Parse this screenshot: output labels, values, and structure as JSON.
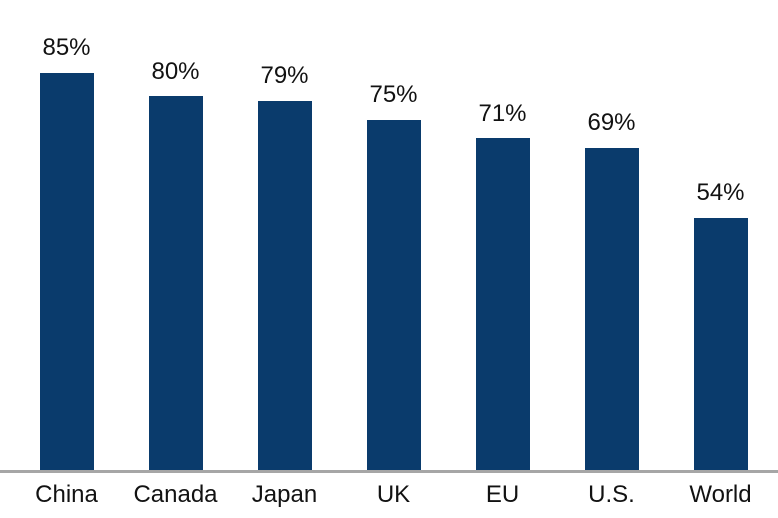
{
  "chart_data": {
    "type": "bar",
    "categories": [
      "China",
      "Canada",
      "Japan",
      "UK",
      "EU",
      "U.S.",
      "World"
    ],
    "values": [
      85,
      80,
      79,
      75,
      71,
      69,
      54
    ],
    "value_labels": [
      "85%",
      "80%",
      "79%",
      "75%",
      "71%",
      "69%",
      "54%"
    ],
    "title": "",
    "xlabel": "",
    "ylabel": "",
    "ylim": [
      0,
      100
    ],
    "legend": "none",
    "grid": "off",
    "bar_color": "#0a3b6c",
    "axis_color": "#a6a6a6",
    "label_color": "#121212"
  }
}
